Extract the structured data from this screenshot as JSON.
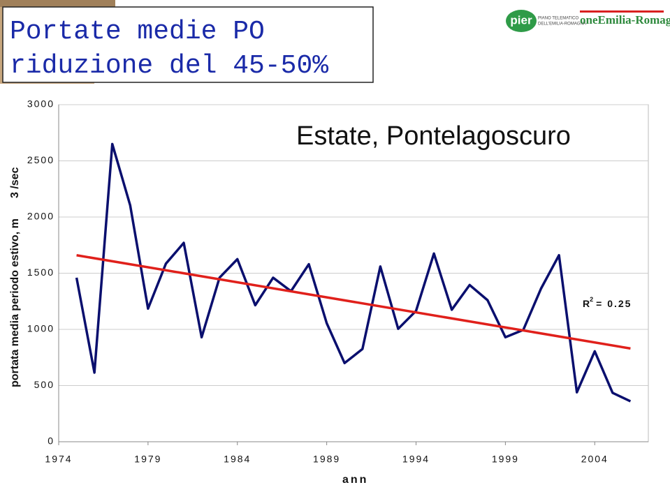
{
  "header": {
    "title_lines": [
      "Portate medie PO",
      "riduzione del 45-50%"
    ],
    "logo_text": "pier",
    "logo_sub_lines": [
      "PIANO TELEMATICO",
      "DELL'EMILIA-ROMAGNA"
    ],
    "region": "oneEmilia-Romagna"
  },
  "chart_data": {
    "type": "line",
    "title": "Estate, Pontelagoscuro",
    "y_label": "portata media periodo estivo, m",
    "y_label_unit": "3 /sec",
    "x_label": "ann",
    "x": [
      1975,
      1976,
      1977,
      1978,
      1979,
      1980,
      1981,
      1982,
      1983,
      1984,
      1985,
      1986,
      1987,
      1988,
      1989,
      1990,
      1991,
      1992,
      1993,
      1994,
      1995,
      1996,
      1997,
      1998,
      1999,
      2000,
      2001,
      2002,
      2003,
      2004,
      2005,
      2006
    ],
    "series": [
      {
        "color": "#0a0f6e",
        "values": [
          1460,
          615,
          2650,
          2105,
          1185,
          1585,
          1770,
          930,
          1460,
          1625,
          1215,
          1460,
          1340,
          1580,
          1055,
          700,
          825,
          1560,
          1005,
          1165,
          1675,
          1175,
          1395,
          1260,
          930,
          995,
          1365,
          1660,
          440,
          805,
          435,
          360
        ]
      }
    ],
    "trendline": {
      "color": "#e0201b",
      "x": [
        1975,
        2006
      ],
      "values": [
        1660,
        830
      ],
      "r2_label": "R",
      "r2_sup": "2",
      "r2_value": "= 0.25"
    },
    "xlim": [
      1974,
      2007
    ],
    "xticks": [
      1974,
      1979,
      1984,
      1989,
      1994,
      1999,
      2004
    ],
    "ylim": [
      0,
      3000
    ],
    "yticks": [
      0,
      500,
      1000,
      1500,
      2000,
      2500,
      3000
    ],
    "grid": true
  }
}
